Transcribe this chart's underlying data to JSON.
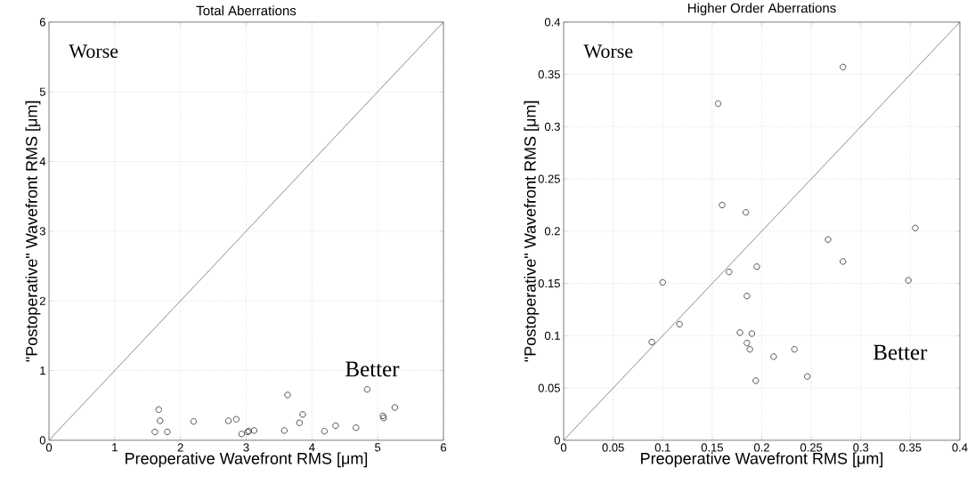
{
  "chart_data": [
    {
      "type": "scatter",
      "title": "Total Aberrations",
      "xlabel": "Preoperative Wavefront RMS [μm]",
      "ylabel": "\"Postoperative\" Wavefront RMS [μm]",
      "xlim": [
        0,
        6
      ],
      "ylim": [
        0,
        6
      ],
      "xticks": [
        0,
        1,
        2,
        3,
        4,
        5,
        6
      ],
      "yticks": [
        0,
        1,
        2,
        3,
        4,
        5,
        6
      ],
      "grid": true,
      "series": [
        {
          "marker": "circle",
          "color": "#404040",
          "x": [
            1.61,
            1.67,
            1.69,
            1.8,
            2.2,
            2.73,
            2.85,
            2.93,
            3.02,
            3.04,
            3.12,
            3.58,
            3.63,
            3.81,
            3.86,
            4.19,
            4.36,
            4.67,
            4.84,
            5.08,
            5.09,
            5.26
          ],
          "values": [
            0.12,
            0.44,
            0.28,
            0.12,
            0.27,
            0.28,
            0.3,
            0.09,
            0.12,
            0.13,
            0.14,
            0.14,
            0.65,
            0.25,
            0.37,
            0.13,
            0.21,
            0.18,
            0.73,
            0.35,
            0.32,
            0.47
          ]
        },
        {
          "type": "line",
          "marker": "none",
          "color": "#404040",
          "x": [
            0,
            6
          ],
          "values": [
            0,
            6
          ]
        }
      ],
      "annotations": [
        "Worse",
        "Better"
      ]
    },
    {
      "type": "scatter",
      "title": "Higher Order Aberrations",
      "xlabel": "Preoperative Wavefront RMS [μm]",
      "ylabel": "\"Postoperative\" Wavefront RMS [μm]",
      "xlim": [
        0,
        0.4
      ],
      "ylim": [
        0,
        0.4
      ],
      "xticks": [
        0,
        0.05,
        0.1,
        0.15,
        0.2,
        0.25,
        0.3,
        0.35,
        0.4
      ],
      "yticks": [
        0,
        0.05,
        0.1,
        0.15,
        0.2,
        0.25,
        0.3,
        0.35,
        0.4
      ],
      "grid": true,
      "series": [
        {
          "marker": "circle",
          "color": "#404040",
          "x": [
            0.089,
            0.1,
            0.117,
            0.156,
            0.16,
            0.167,
            0.178,
            0.184,
            0.185,
            0.185,
            0.188,
            0.19,
            0.195,
            0.194,
            0.212,
            0.233,
            0.246,
            0.267,
            0.282,
            0.282,
            0.348,
            0.355
          ],
          "values": [
            0.094,
            0.151,
            0.111,
            0.322,
            0.225,
            0.161,
            0.103,
            0.218,
            0.138,
            0.093,
            0.087,
            0.102,
            0.166,
            0.057,
            0.08,
            0.087,
            0.061,
            0.192,
            0.171,
            0.357,
            0.153,
            0.203
          ]
        },
        {
          "type": "line",
          "marker": "none",
          "color": "#404040",
          "x": [
            0,
            0.4
          ],
          "values": [
            0,
            0.4
          ]
        }
      ],
      "annotations": [
        "Worse",
        "Better"
      ]
    }
  ]
}
